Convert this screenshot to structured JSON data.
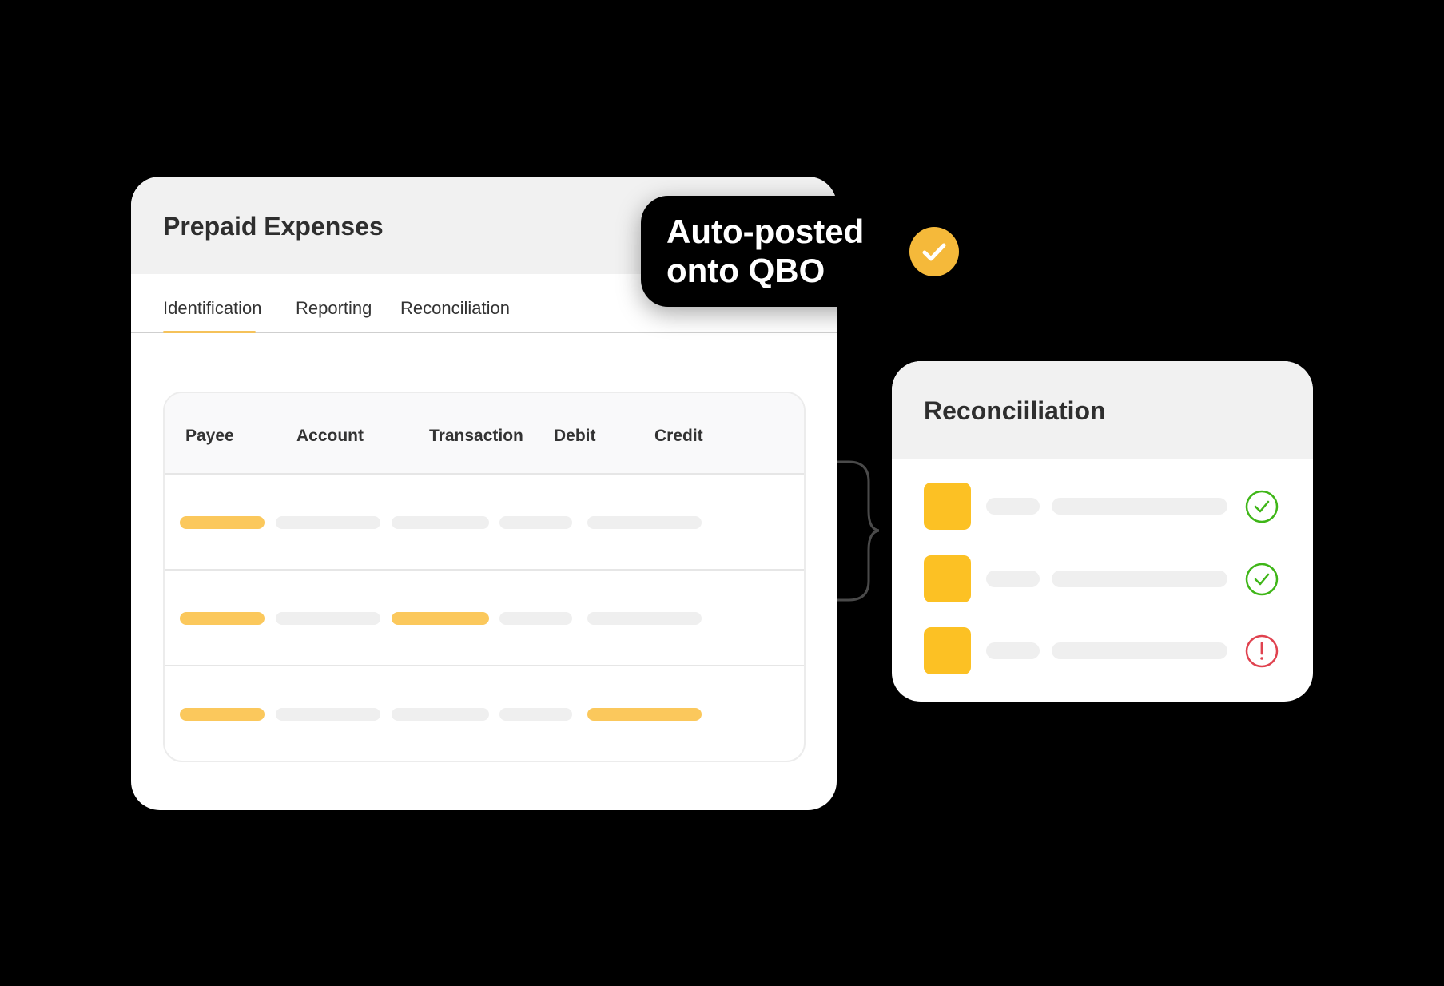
{
  "main_card": {
    "title": "Prepaid Expenses",
    "tabs": [
      {
        "label": "Identification",
        "active": true
      },
      {
        "label": "Reporting"
      },
      {
        "label": "Reconciliation"
      }
    ],
    "table": {
      "columns": [
        "Payee",
        "Account",
        "Transaction",
        "Debit",
        "Credit"
      ],
      "rows": [
        {
          "highlighted": [
            true,
            false,
            false,
            false,
            false
          ]
        },
        {
          "highlighted": [
            true,
            false,
            true,
            false,
            false
          ]
        },
        {
          "highlighted": [
            true,
            false,
            false,
            false,
            true
          ]
        }
      ]
    }
  },
  "tooltip": {
    "line1": "Auto-posted",
    "line2": "onto QBO",
    "icon": "check-circle-icon"
  },
  "reconciliation_card": {
    "title": "Reconciiliation",
    "items": [
      {
        "status": "success"
      },
      {
        "status": "success"
      },
      {
        "status": "error"
      }
    ]
  },
  "colors": {
    "accent": "#fbc85c",
    "square": "#fcc124",
    "success": "#3fb618",
    "error": "#e0424f",
    "check_badge": "#f5b93a"
  }
}
